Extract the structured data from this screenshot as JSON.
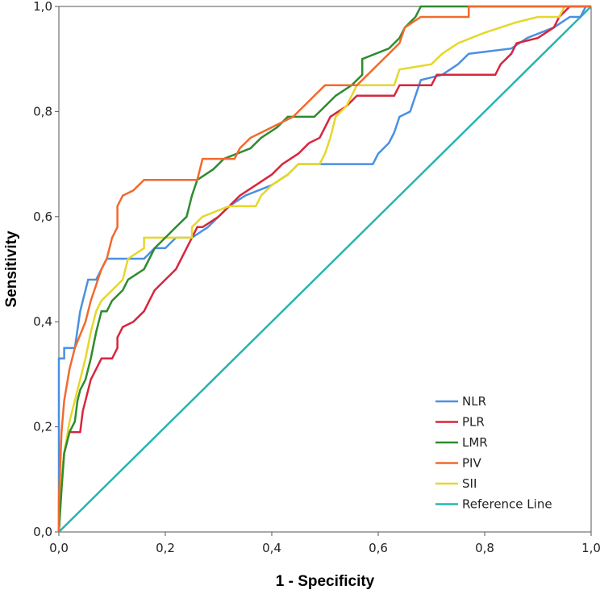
{
  "chart_data": {
    "type": "line",
    "title": "",
    "xlabel": "1 - Specificity",
    "ylabel": "Sensitivity",
    "xlim": [
      0,
      1
    ],
    "ylim": [
      0,
      1
    ],
    "x_ticks": [
      "0,0",
      "0,2",
      "0,4",
      "0,6",
      "0,8",
      "1,0"
    ],
    "y_ticks": [
      "0,0",
      "0,2",
      "0,4",
      "0,6",
      "0,8",
      "1,0"
    ],
    "legend_position": "bottom-right",
    "series": [
      {
        "name": "NLR",
        "color": "#4a90e2",
        "points": [
          [
            0,
            0
          ],
          [
            0,
            0.33
          ],
          [
            0.01,
            0.33
          ],
          [
            0.01,
            0.35
          ],
          [
            0.03,
            0.35
          ],
          [
            0.04,
            0.42
          ],
          [
            0.05,
            0.46
          ],
          [
            0.055,
            0.48
          ],
          [
            0.07,
            0.48
          ],
          [
            0.08,
            0.5
          ],
          [
            0.09,
            0.52
          ],
          [
            0.12,
            0.52
          ],
          [
            0.14,
            0.52
          ],
          [
            0.16,
            0.52
          ],
          [
            0.18,
            0.54
          ],
          [
            0.2,
            0.54
          ],
          [
            0.22,
            0.56
          ],
          [
            0.25,
            0.56
          ],
          [
            0.28,
            0.58
          ],
          [
            0.3,
            0.6
          ],
          [
            0.32,
            0.62
          ],
          [
            0.35,
            0.64
          ],
          [
            0.4,
            0.66
          ],
          [
            0.43,
            0.68
          ],
          [
            0.45,
            0.7
          ],
          [
            0.48,
            0.7
          ],
          [
            0.55,
            0.7
          ],
          [
            0.59,
            0.7
          ],
          [
            0.6,
            0.72
          ],
          [
            0.62,
            0.74
          ],
          [
            0.63,
            0.76
          ],
          [
            0.64,
            0.79
          ],
          [
            0.66,
            0.8
          ],
          [
            0.67,
            0.83
          ],
          [
            0.68,
            0.86
          ],
          [
            0.72,
            0.87
          ],
          [
            0.75,
            0.89
          ],
          [
            0.77,
            0.91
          ],
          [
            0.85,
            0.92
          ],
          [
            0.88,
            0.94
          ],
          [
            0.93,
            0.96
          ],
          [
            0.96,
            0.98
          ],
          [
            0.98,
            0.98
          ],
          [
            0.99,
            1.0
          ],
          [
            1,
            1
          ]
        ]
      },
      {
        "name": "PLR",
        "color": "#d7263d",
        "points": [
          [
            0,
            0
          ],
          [
            0.005,
            0.1
          ],
          [
            0.01,
            0.15
          ],
          [
            0.02,
            0.19
          ],
          [
            0.04,
            0.19
          ],
          [
            0.045,
            0.23
          ],
          [
            0.05,
            0.25
          ],
          [
            0.06,
            0.29
          ],
          [
            0.07,
            0.31
          ],
          [
            0.08,
            0.33
          ],
          [
            0.1,
            0.33
          ],
          [
            0.11,
            0.35
          ],
          [
            0.11,
            0.37
          ],
          [
            0.12,
            0.39
          ],
          [
            0.14,
            0.4
          ],
          [
            0.16,
            0.42
          ],
          [
            0.17,
            0.44
          ],
          [
            0.18,
            0.46
          ],
          [
            0.2,
            0.48
          ],
          [
            0.22,
            0.5
          ],
          [
            0.23,
            0.52
          ],
          [
            0.24,
            0.54
          ],
          [
            0.25,
            0.56
          ],
          [
            0.26,
            0.58
          ],
          [
            0.27,
            0.58
          ],
          [
            0.3,
            0.6
          ],
          [
            0.32,
            0.62
          ],
          [
            0.34,
            0.64
          ],
          [
            0.37,
            0.66
          ],
          [
            0.4,
            0.68
          ],
          [
            0.42,
            0.7
          ],
          [
            0.45,
            0.72
          ],
          [
            0.47,
            0.74
          ],
          [
            0.49,
            0.75
          ],
          [
            0.5,
            0.77
          ],
          [
            0.51,
            0.79
          ],
          [
            0.54,
            0.81
          ],
          [
            0.56,
            0.83
          ],
          [
            0.63,
            0.83
          ],
          [
            0.64,
            0.85
          ],
          [
            0.7,
            0.85
          ],
          [
            0.71,
            0.87
          ],
          [
            0.8,
            0.87
          ],
          [
            0.82,
            0.87
          ],
          [
            0.83,
            0.89
          ],
          [
            0.85,
            0.91
          ],
          [
            0.86,
            0.93
          ],
          [
            0.9,
            0.94
          ],
          [
            0.93,
            0.96
          ],
          [
            0.94,
            0.98
          ],
          [
            0.96,
            1.0
          ],
          [
            1,
            1
          ]
        ]
      },
      {
        "name": "LMR",
        "color": "#2e8b2e",
        "points": [
          [
            0,
            0
          ],
          [
            0.005,
            0.08
          ],
          [
            0.01,
            0.15
          ],
          [
            0.02,
            0.19
          ],
          [
            0.03,
            0.21
          ],
          [
            0.035,
            0.25
          ],
          [
            0.04,
            0.27
          ],
          [
            0.05,
            0.29
          ],
          [
            0.06,
            0.33
          ],
          [
            0.07,
            0.38
          ],
          [
            0.08,
            0.42
          ],
          [
            0.09,
            0.42
          ],
          [
            0.1,
            0.44
          ],
          [
            0.12,
            0.46
          ],
          [
            0.13,
            0.48
          ],
          [
            0.16,
            0.5
          ],
          [
            0.17,
            0.52
          ],
          [
            0.18,
            0.54
          ],
          [
            0.2,
            0.56
          ],
          [
            0.22,
            0.58
          ],
          [
            0.24,
            0.6
          ],
          [
            0.25,
            0.64
          ],
          [
            0.26,
            0.67
          ],
          [
            0.29,
            0.69
          ],
          [
            0.31,
            0.71
          ],
          [
            0.36,
            0.73
          ],
          [
            0.38,
            0.75
          ],
          [
            0.41,
            0.77
          ],
          [
            0.43,
            0.79
          ],
          [
            0.48,
            0.79
          ],
          [
            0.5,
            0.81
          ],
          [
            0.52,
            0.83
          ],
          [
            0.55,
            0.85
          ],
          [
            0.57,
            0.87
          ],
          [
            0.57,
            0.9
          ],
          [
            0.62,
            0.92
          ],
          [
            0.64,
            0.94
          ],
          [
            0.65,
            0.96
          ],
          [
            0.67,
            0.98
          ],
          [
            0.68,
            1.0
          ],
          [
            1,
            1
          ]
        ]
      },
      {
        "name": "PIV",
        "color": "#f26a2c",
        "points": [
          [
            0,
            0
          ],
          [
            0,
            0.06
          ],
          [
            0.005,
            0.19
          ],
          [
            0.01,
            0.25
          ],
          [
            0.02,
            0.31
          ],
          [
            0.03,
            0.35
          ],
          [
            0.05,
            0.4
          ],
          [
            0.06,
            0.44
          ],
          [
            0.07,
            0.47
          ],
          [
            0.08,
            0.5
          ],
          [
            0.09,
            0.52
          ],
          [
            0.1,
            0.56
          ],
          [
            0.11,
            0.58
          ],
          [
            0.11,
            0.62
          ],
          [
            0.12,
            0.64
          ],
          [
            0.14,
            0.65
          ],
          [
            0.16,
            0.67
          ],
          [
            0.26,
            0.67
          ],
          [
            0.27,
            0.71
          ],
          [
            0.33,
            0.71
          ],
          [
            0.34,
            0.73
          ],
          [
            0.36,
            0.75
          ],
          [
            0.4,
            0.77
          ],
          [
            0.44,
            0.79
          ],
          [
            0.46,
            0.81
          ],
          [
            0.48,
            0.83
          ],
          [
            0.5,
            0.85
          ],
          [
            0.56,
            0.85
          ],
          [
            0.58,
            0.87
          ],
          [
            0.6,
            0.89
          ],
          [
            0.62,
            0.91
          ],
          [
            0.64,
            0.93
          ],
          [
            0.65,
            0.96
          ],
          [
            0.68,
            0.98
          ],
          [
            0.77,
            0.98
          ],
          [
            0.77,
            1.0
          ],
          [
            1,
            1
          ]
        ]
      },
      {
        "name": "SII",
        "color": "#e6d72a",
        "points": [
          [
            0,
            0
          ],
          [
            0.005,
            0.1
          ],
          [
            0.01,
            0.15
          ],
          [
            0.02,
            0.21
          ],
          [
            0.03,
            0.25
          ],
          [
            0.04,
            0.29
          ],
          [
            0.05,
            0.33
          ],
          [
            0.06,
            0.38
          ],
          [
            0.07,
            0.42
          ],
          [
            0.08,
            0.44
          ],
          [
            0.1,
            0.46
          ],
          [
            0.12,
            0.48
          ],
          [
            0.13,
            0.52
          ],
          [
            0.16,
            0.54
          ],
          [
            0.16,
            0.56
          ],
          [
            0.25,
            0.56
          ],
          [
            0.25,
            0.58
          ],
          [
            0.27,
            0.6
          ],
          [
            0.32,
            0.62
          ],
          [
            0.37,
            0.62
          ],
          [
            0.38,
            0.64
          ],
          [
            0.4,
            0.66
          ],
          [
            0.43,
            0.68
          ],
          [
            0.45,
            0.7
          ],
          [
            0.49,
            0.7
          ],
          [
            0.5,
            0.72
          ],
          [
            0.51,
            0.75
          ],
          [
            0.52,
            0.79
          ],
          [
            0.54,
            0.81
          ],
          [
            0.55,
            0.83
          ],
          [
            0.56,
            0.85
          ],
          [
            0.63,
            0.85
          ],
          [
            0.64,
            0.88
          ],
          [
            0.7,
            0.89
          ],
          [
            0.72,
            0.91
          ],
          [
            0.75,
            0.93
          ],
          [
            0.8,
            0.95
          ],
          [
            0.86,
            0.97
          ],
          [
            0.9,
            0.98
          ],
          [
            0.94,
            0.98
          ],
          [
            0.95,
            1.0
          ],
          [
            1,
            1
          ]
        ]
      },
      {
        "name": "Reference Line",
        "color": "#26b5b0",
        "points": [
          [
            0,
            0
          ],
          [
            1,
            1
          ]
        ]
      }
    ]
  }
}
